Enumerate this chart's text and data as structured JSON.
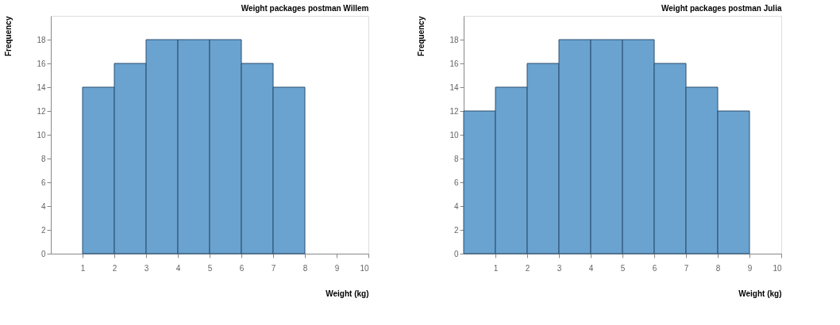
{
  "chart_data": [
    {
      "type": "histogram",
      "title": "Weight packages postman Willem",
      "xlabel": "Weight (kg)",
      "ylabel": "Frequency",
      "bins": [
        1,
        2,
        3,
        4,
        5,
        6,
        7,
        8
      ],
      "values": [
        14,
        16,
        18,
        18,
        18,
        16,
        14
      ],
      "color": "#6aa3cf",
      "xlim": [
        0,
        10
      ],
      "ylim": [
        0,
        20
      ],
      "xticks": [
        1,
        2,
        3,
        4,
        5,
        6,
        7,
        8,
        9,
        10
      ],
      "yticks": [
        0,
        2,
        4,
        6,
        8,
        10,
        12,
        14,
        16,
        18
      ],
      "grid": false
    },
    {
      "type": "histogram",
      "title": "Weight packages postman Julia",
      "xlabel": "Weight (kg)",
      "ylabel": "Frequency",
      "bins": [
        0,
        1,
        2,
        3,
        4,
        5,
        6,
        7,
        8,
        9
      ],
      "values": [
        12,
        14,
        16,
        18,
        18,
        18,
        16,
        14,
        12
      ],
      "color": "#6aa3cf",
      "xlim": [
        0,
        10
      ],
      "ylim": [
        0,
        20
      ],
      "xticks": [
        1,
        2,
        3,
        4,
        5,
        6,
        7,
        8,
        9,
        10
      ],
      "yticks": [
        0,
        2,
        4,
        6,
        8,
        10,
        12,
        14,
        16,
        18
      ],
      "grid": false
    }
  ]
}
